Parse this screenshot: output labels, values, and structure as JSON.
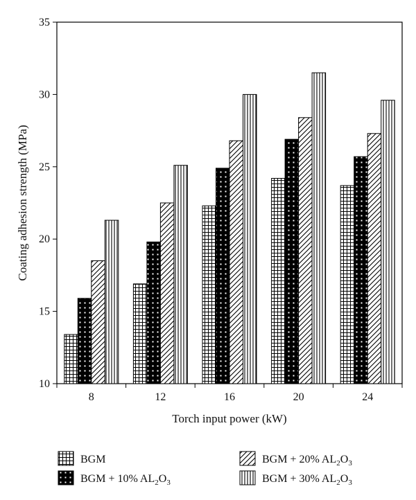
{
  "chart_data": {
    "type": "bar",
    "categories": [
      "8",
      "12",
      "16",
      "20",
      "24"
    ],
    "series": [
      {
        "name": "BGM",
        "pattern": "grid",
        "values": [
          13.4,
          16.9,
          22.3,
          24.2,
          23.7
        ]
      },
      {
        "name": "BGM + 10% AL2O3",
        "pattern": "dots",
        "values": [
          15.9,
          19.8,
          24.9,
          26.9,
          25.7
        ]
      },
      {
        "name": "BGM + 20% AL2O3",
        "pattern": "diagonal",
        "values": [
          18.5,
          22.5,
          26.8,
          28.4,
          27.3
        ]
      },
      {
        "name": "BGM + 30% AL2O3",
        "pattern": "vertical",
        "values": [
          21.3,
          25.1,
          30.0,
          31.5,
          29.6
        ]
      }
    ],
    "xlabel": "Torch input power (kW)",
    "ylabel": "Coating adhesion strength (MPa)",
    "ylim": [
      10,
      35
    ],
    "yticks": [
      10,
      15,
      20,
      25,
      30,
      35
    ],
    "grid": false,
    "legend_position": "bottom"
  },
  "legend": {
    "items": [
      {
        "base": "BGM",
        "sub": "",
        "tail": ""
      },
      {
        "base": "BGM + 10% AL",
        "sub": "2",
        "tail": "O",
        "sub2": "3"
      },
      {
        "base": "BGM + 20% AL",
        "sub": "2",
        "tail": "O",
        "sub2": "3"
      },
      {
        "base": "BGM + 30% AL",
        "sub": "2",
        "tail": "O",
        "sub2": "3"
      }
    ]
  }
}
